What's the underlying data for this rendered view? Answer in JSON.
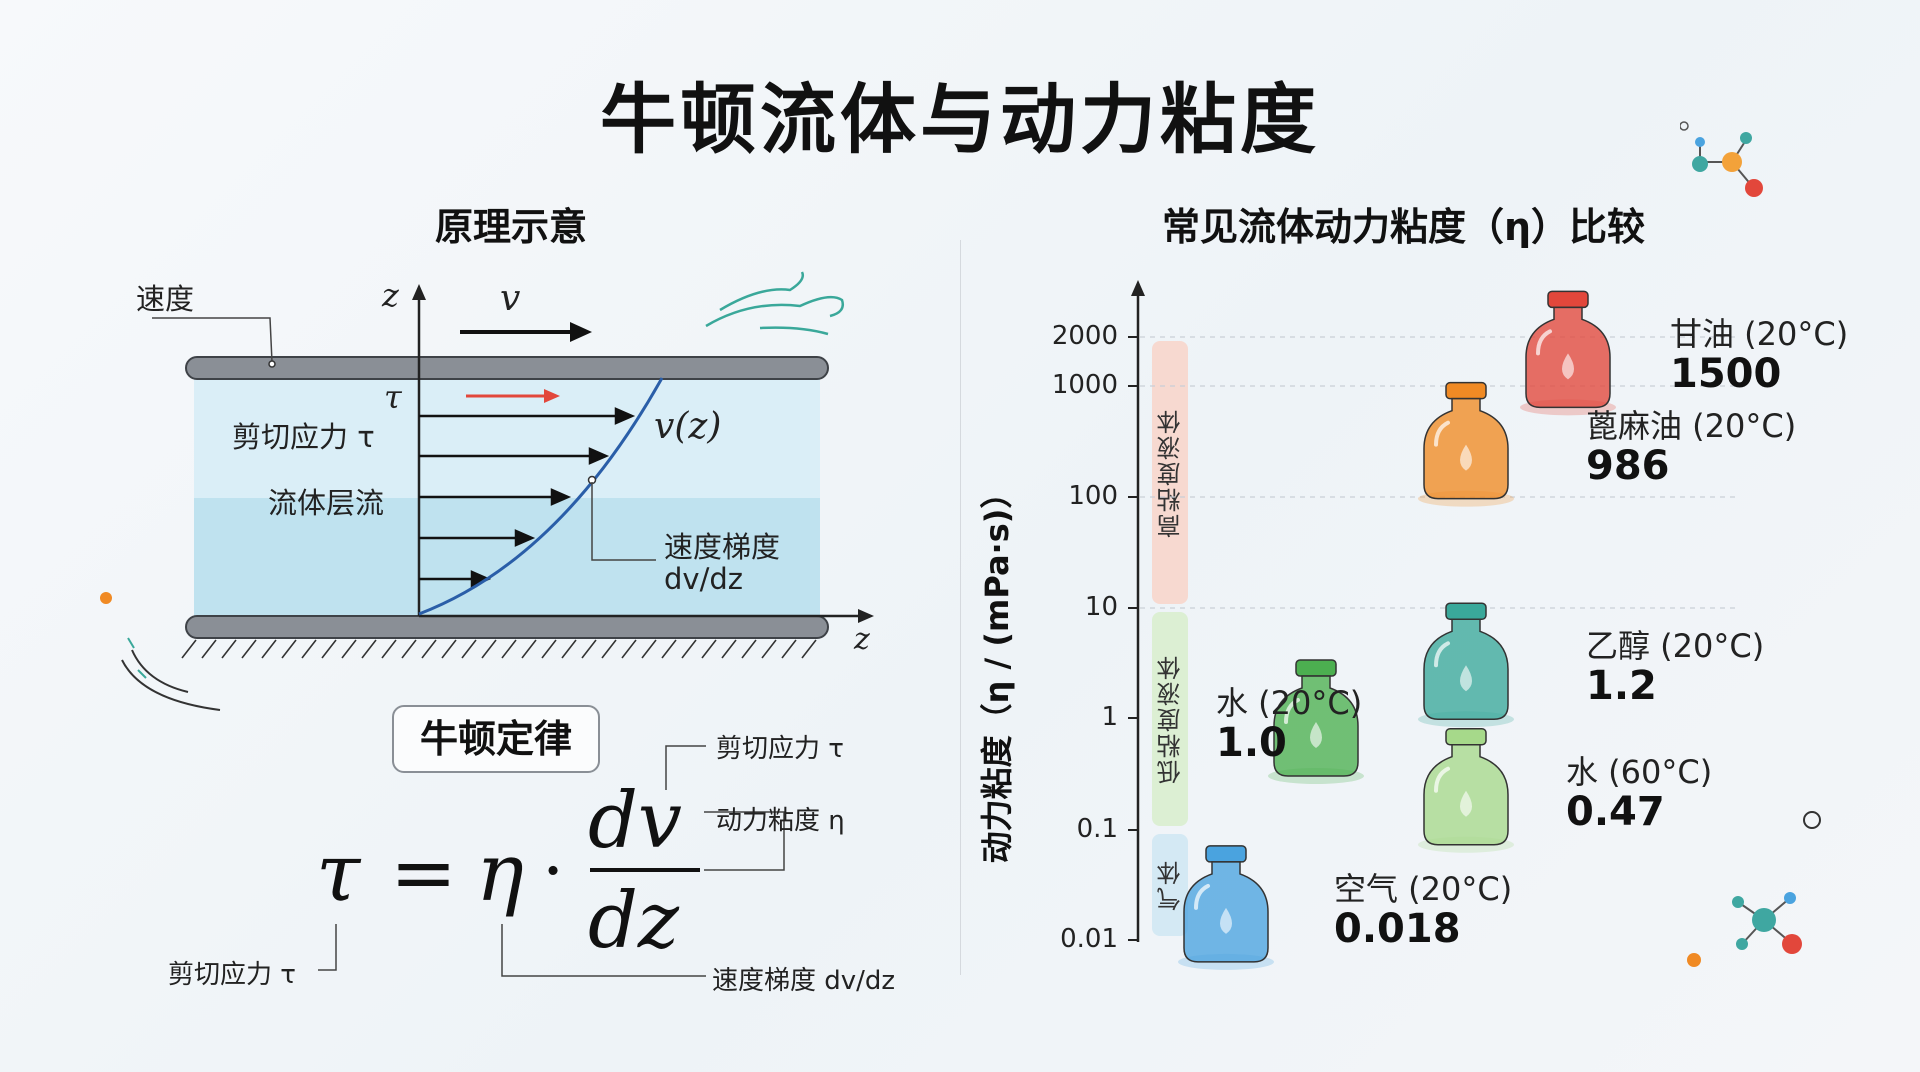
{
  "title": "牛顿流体与动力粘度",
  "left_section": {
    "heading": "原理示意",
    "label_velocity": "速度",
    "axis_z_top": "z",
    "axis_z_right": "z",
    "velocity_symbol": "v",
    "tau_symbol": "τ",
    "label_shear": "剪切应力 τ",
    "label_laminar": "流体层流",
    "profile_label": "v(z)",
    "gradient_label_1": "速度梯度",
    "gradient_label_2": "dv/dz",
    "law_title": "牛顿定律",
    "formula": {
      "lhs": "τ",
      "eq": "=",
      "eta": "η",
      "dot": "·",
      "numerator": "dv",
      "denominator": "dz"
    },
    "annotations": {
      "shear_right": "剪切应力 τ",
      "viscosity_right": "动力粘度 η",
      "shear_left": "剪切应力 τ",
      "gradient_bottom": "速度梯度 dv/dz"
    }
  },
  "right_section": {
    "heading": "常见流体动力粘度（η）比较",
    "chart_data": {
      "type": "scatter",
      "title": "常见流体动力粘度（η）比较",
      "ylabel": "动力粘度（η / (mPa·s)）",
      "yscale": "log",
      "ylim": [
        0.01,
        2000
      ],
      "yticks": [
        "0.01",
        "0.1",
        "1",
        "10",
        "100",
        "1000",
        "2000"
      ],
      "ytick_values": [
        0.01,
        0.1,
        1,
        10,
        100,
        1000,
        2000
      ],
      "bands": [
        {
          "label": "高粘度液体",
          "range": [
            10,
            2000
          ],
          "color": "#f7d9d0"
        },
        {
          "label": "低粘度液体",
          "range": [
            0.1,
            10
          ],
          "color": "#dcefd3"
        },
        {
          "label": "气体",
          "range": [
            0.01,
            0.1
          ],
          "color": "#d4e9f4"
        }
      ],
      "points": [
        {
          "name": "甘油 (20°C)",
          "value_label": "1500",
          "y": 1500,
          "color": "#e2473b"
        },
        {
          "name": "蓖麻油 (20°C)",
          "value_label": "986",
          "y": 986,
          "color": "#f08a24"
        },
        {
          "name": "乙醇 (20°C)",
          "value_label": "1.2",
          "y": 1.2,
          "color": "#3aa89a"
        },
        {
          "name": "水 (20°C)",
          "value_label": "1.0",
          "y": 1.0,
          "color": "#4caf50"
        },
        {
          "name": "水 (60°C)",
          "value_label": "0.47",
          "y": 0.47,
          "color": "#a6d98a"
        },
        {
          "name": "空气 (20°C)",
          "value_label": "0.018",
          "y": 0.018,
          "color": "#4aa3df"
        }
      ]
    }
  }
}
